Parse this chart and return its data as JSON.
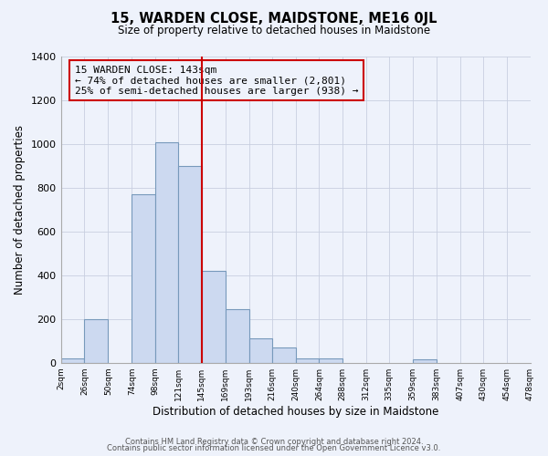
{
  "title": "15, WARDEN CLOSE, MAIDSTONE, ME16 0JL",
  "subtitle": "Size of property relative to detached houses in Maidstone",
  "xlabel": "Distribution of detached houses by size in Maidstone",
  "ylabel": "Number of detached properties",
  "bar_color": "#ccd9f0",
  "bar_edge_color": "#7799bb",
  "background_color": "#eef2fb",
  "grid_color": "#c8cfe0",
  "vline_x": 145,
  "vline_color": "#cc0000",
  "annotation_title": "15 WARDEN CLOSE: 143sqm",
  "annotation_line1": "← 74% of detached houses are smaller (2,801)",
  "annotation_line2": "25% of semi-detached houses are larger (938) →",
  "annotation_box_color": "#cc0000",
  "footnote1": "Contains HM Land Registry data © Crown copyright and database right 2024.",
  "footnote2": "Contains public sector information licensed under the Open Government Licence v3.0.",
  "bins": [
    2,
    26,
    50,
    74,
    98,
    121,
    145,
    169,
    193,
    216,
    240,
    264,
    288,
    312,
    335,
    359,
    383,
    407,
    430,
    454,
    478
  ],
  "counts": [
    20,
    200,
    0,
    770,
    1005,
    900,
    420,
    245,
    110,
    70,
    20,
    20,
    0,
    0,
    0,
    15,
    0,
    0,
    0,
    0
  ],
  "xlim": [
    2,
    478
  ],
  "ylim": [
    0,
    1400
  ],
  "yticks": [
    0,
    200,
    400,
    600,
    800,
    1000,
    1200,
    1400
  ],
  "xtick_labels": [
    "2sqm",
    "26sqm",
    "50sqm",
    "74sqm",
    "98sqm",
    "121sqm",
    "145sqm",
    "169sqm",
    "193sqm",
    "216sqm",
    "240sqm",
    "264sqm",
    "288sqm",
    "312sqm",
    "335sqm",
    "359sqm",
    "383sqm",
    "407sqm",
    "430sqm",
    "454sqm",
    "478sqm"
  ]
}
